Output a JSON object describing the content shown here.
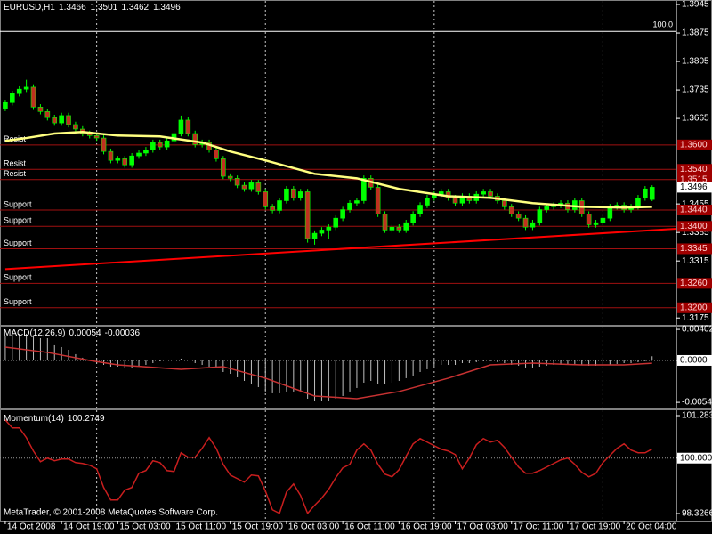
{
  "chart_data": [
    {
      "type": "candlestick",
      "title": "EURUSD,H1",
      "open": [
        1.369,
        1.3704,
        1.3726,
        1.3737,
        1.3742,
        1.3693,
        1.3682,
        1.3667,
        1.3654,
        1.3672,
        1.365,
        1.3639,
        1.3628,
        1.3623,
        1.3617,
        1.3584,
        1.3562,
        1.3566,
        1.3551,
        1.3573,
        1.358,
        1.3588,
        1.3606,
        1.3595,
        1.361,
        1.3628,
        1.3661,
        1.3628,
        1.3601,
        1.3606,
        1.3588,
        1.3566,
        1.3523,
        1.3518,
        1.3501,
        1.3492,
        1.3507,
        1.3485,
        1.3448,
        1.3439,
        1.3463,
        1.3492,
        1.347,
        1.3485,
        1.337,
        1.3383,
        1.3391,
        1.3398,
        1.342,
        1.3441,
        1.3457,
        1.3463,
        1.3518,
        1.3496,
        1.343,
        1.3391,
        1.3398,
        1.3391,
        1.3409,
        1.343,
        1.3452,
        1.347,
        1.3479,
        1.3485,
        1.347,
        1.3457,
        1.3474,
        1.3463,
        1.3479,
        1.3485,
        1.3474,
        1.3463,
        1.3448,
        1.343,
        1.342,
        1.3398,
        1.3409,
        1.3441,
        1.3448,
        1.3452,
        1.3457,
        1.3441,
        1.3463,
        1.343,
        1.3404,
        1.3409,
        1.342,
        1.3448,
        1.3452,
        1.3441,
        1.3448,
        1.347,
        1.3466
      ],
      "high": [
        1.3711,
        1.3733,
        1.3744,
        1.376,
        1.3749,
        1.37,
        1.3689,
        1.3674,
        1.3679,
        1.3679,
        1.3657,
        1.3646,
        1.3635,
        1.363,
        1.3624,
        1.3591,
        1.3573,
        1.3573,
        1.358,
        1.3587,
        1.3595,
        1.3613,
        1.3613,
        1.3617,
        1.3635,
        1.3672,
        1.3668,
        1.3635,
        1.3613,
        1.3613,
        1.3595,
        1.3573,
        1.353,
        1.3525,
        1.3508,
        1.3514,
        1.3514,
        1.3492,
        1.3455,
        1.347,
        1.3499,
        1.3499,
        1.3492,
        1.3492,
        1.339,
        1.3398,
        1.3405,
        1.3427,
        1.3448,
        1.3464,
        1.347,
        1.3525,
        1.3525,
        1.3503,
        1.3437,
        1.3405,
        1.3405,
        1.3416,
        1.3437,
        1.3459,
        1.3477,
        1.3486,
        1.3492,
        1.3492,
        1.3477,
        1.3481,
        1.3481,
        1.3486,
        1.3492,
        1.3492,
        1.3481,
        1.347,
        1.3455,
        1.3437,
        1.3427,
        1.3416,
        1.3448,
        1.3455,
        1.3459,
        1.3464,
        1.3464,
        1.347,
        1.347,
        1.3437,
        1.3416,
        1.3427,
        1.3455,
        1.3459,
        1.3459,
        1.3455,
        1.3477,
        1.3499,
        1.3501
      ],
      "low": [
        1.3683,
        1.3697,
        1.3719,
        1.373,
        1.3686,
        1.3675,
        1.366,
        1.3647,
        1.3647,
        1.3643,
        1.3632,
        1.3621,
        1.3616,
        1.361,
        1.3577,
        1.3555,
        1.3555,
        1.3544,
        1.3544,
        1.3566,
        1.3573,
        1.3581,
        1.3588,
        1.3588,
        1.3603,
        1.3621,
        1.3621,
        1.3594,
        1.3594,
        1.3581,
        1.3559,
        1.3516,
        1.3511,
        1.3494,
        1.3485,
        1.3485,
        1.3478,
        1.3441,
        1.3432,
        1.3432,
        1.3456,
        1.3463,
        1.3463,
        1.336,
        1.3355,
        1.3376,
        1.337,
        1.3391,
        1.3413,
        1.3434,
        1.345,
        1.3456,
        1.3489,
        1.3423,
        1.3384,
        1.3384,
        1.3384,
        1.3384,
        1.3402,
        1.3423,
        1.3445,
        1.3463,
        1.3472,
        1.3463,
        1.345,
        1.345,
        1.3456,
        1.3456,
        1.3472,
        1.3467,
        1.3456,
        1.3441,
        1.3423,
        1.3413,
        1.3391,
        1.3391,
        1.3402,
        1.3434,
        1.3441,
        1.3445,
        1.3434,
        1.3434,
        1.3423,
        1.3397,
        1.3397,
        1.3402,
        1.3413,
        1.3441,
        1.3434,
        1.3434,
        1.3441,
        1.3463,
        1.3462
      ],
      "close": [
        1.3704,
        1.3726,
        1.3737,
        1.3742,
        1.3693,
        1.3682,
        1.3667,
        1.3654,
        1.3672,
        1.365,
        1.3639,
        1.3628,
        1.3623,
        1.3617,
        1.3584,
        1.3562,
        1.3566,
        1.3551,
        1.3573,
        1.358,
        1.3588,
        1.3606,
        1.3595,
        1.361,
        1.3628,
        1.3661,
        1.3628,
        1.3601,
        1.3606,
        1.3588,
        1.3566,
        1.3523,
        1.3518,
        1.3501,
        1.3492,
        1.3507,
        1.3485,
        1.3448,
        1.3439,
        1.3463,
        1.3492,
        1.347,
        1.3485,
        1.337,
        1.3383,
        1.3391,
        1.3398,
        1.342,
        1.3441,
        1.3457,
        1.3463,
        1.3518,
        1.3496,
        1.343,
        1.3391,
        1.3398,
        1.3391,
        1.3409,
        1.343,
        1.3452,
        1.347,
        1.3479,
        1.3485,
        1.347,
        1.3457,
        1.3474,
        1.3463,
        1.3479,
        1.3485,
        1.3474,
        1.3463,
        1.3448,
        1.343,
        1.342,
        1.3398,
        1.3409,
        1.3441,
        1.3448,
        1.3452,
        1.3457,
        1.3441,
        1.3463,
        1.343,
        1.3404,
        1.3409,
        1.342,
        1.3448,
        1.3452,
        1.3441,
        1.3448,
        1.347,
        1.3492,
        1.3496
      ],
      "bull_color": "#00ff00",
      "bear_color": "#c03020",
      "wick_color": "#00ff00",
      "ma": {
        "x": [
          0,
          3,
          7,
          11,
          16,
          22,
          28,
          32,
          37,
          44,
          50,
          56,
          63,
          69,
          75,
          82,
          88,
          92
        ],
        "values": [
          1.361,
          1.3617,
          1.3628,
          1.3632,
          1.3623,
          1.3621,
          1.3606,
          1.3584,
          1.3562,
          1.3529,
          1.3518,
          1.3492,
          1.3474,
          1.347,
          1.3457,
          1.3448,
          1.3446,
          1.3448
        ],
        "color": "#ffff80"
      },
      "trendline": {
        "x": [
          0,
          95.45
        ],
        "values": [
          1.3295,
          1.3394
        ],
        "color": "#ff0000"
      },
      "levels": [
        {
          "value": 1.36,
          "label": "1.3600",
          "name": "Resist"
        },
        {
          "value": 1.354,
          "label": "1.3540",
          "name": "Resist"
        },
        {
          "value": 1.3515,
          "name": "Resist"
        },
        {
          "value": 1.344,
          "label": "1.3440",
          "name": "Support"
        },
        {
          "value": 1.34,
          "label": "1.3400",
          "name": "Support"
        },
        {
          "value": 1.3345,
          "name": "Support"
        },
        {
          "value": 1.326,
          "label": "1.3260",
          "name": "Support"
        },
        {
          "value": 1.32,
          "label": "1.3200",
          "name": "Support"
        }
      ],
      "level_color": "#a01010",
      "fibo": {
        "value": 1.3879,
        "label": "100.0"
      },
      "separators": [
        13,
        37,
        61,
        85
      ],
      "xlim": [
        -0.75,
        95.45
      ],
      "ylim": [
        1.3158,
        1.3956
      ],
      "yticks": [
        1.3945,
        1.3875,
        1.3805,
        1.3735,
        1.3665,
        1.3455,
        1.3385,
        1.3315,
        1.3175
      ]
    },
    {
      "type": "bar",
      "title": "MACD(12,26,9)",
      "values": [
        0.00311,
        0.00346,
        0.00346,
        0.00346,
        0.00311,
        0.00288,
        0.00288,
        0.00196,
        0.00173,
        0.00138,
        0.00081,
        0.00035,
        0,
        -0.00035,
        -0.00058,
        -0.00081,
        -0.00081,
        -0.00104,
        -0.00104,
        -0.00081,
        -0.00058,
        -0.00035,
        -0.00012,
        0,
        0.00012,
        0.00023,
        0,
        -0.00035,
        -0.00058,
        -0.00081,
        -0.00104,
        -0.0015,
        -0.00173,
        -0.00219,
        -0.00265,
        -0.00311,
        -0.00346,
        -0.00403,
        -0.00426,
        -0.00426,
        -0.00403,
        -0.00403,
        -0.00403,
        -0.00496,
        -0.00519,
        -0.00519,
        -0.00519,
        -0.00496,
        -0.00461,
        -0.00403,
        -0.00357,
        -0.00288,
        -0.00265,
        -0.00311,
        -0.00311,
        -0.00288,
        -0.00265,
        -0.0023,
        -0.00196,
        -0.0015,
        -0.00115,
        -0.00081,
        -0.00058,
        -0.00058,
        -0.00058,
        -0.00035,
        -0.00035,
        -0.00023,
        -0.00012,
        -0.00012,
        -0.00023,
        -0.00035,
        -0.00058,
        -0.00069,
        -0.00092,
        -0.00092,
        -0.00081,
        -0.00069,
        -0.00058,
        -0.00058,
        -0.00058,
        -0.00046,
        -0.00058,
        -0.00069,
        -0.00069,
        -0.00069,
        -0.00058,
        -0.00046,
        -0.00035,
        -0.00035,
        -0.00023,
        -0.00012,
        0.00054
      ],
      "color": "#c0c0c0",
      "signal": {
        "x": [
          0,
          6,
          12,
          16,
          25,
          31,
          37,
          44,
          50,
          56,
          63,
          69,
          75,
          82,
          88,
          92
        ],
        "values": [
          0.00173,
          0.00104,
          0,
          -0.00058,
          -0.00115,
          -0.00081,
          -0.0023,
          -0.00461,
          -0.00496,
          -0.00403,
          -0.0023,
          -0.00058,
          -0.00035,
          -0.00058,
          -0.00058,
          -0.00036
        ],
        "color": "#c83232"
      },
      "ylim": [
        -0.00611,
        0.00449
      ],
      "yticks": [
        0.00402,
        {
          "value": 0,
          "label": "0.0000",
          "level": true
        },
        -0.00543
      ]
    },
    {
      "type": "line",
      "title": "Momentum(14)",
      "values": [
        101.1559,
        100.914,
        100.914,
        100.6183,
        100.2151,
        99.8925,
        100,
        99.9194,
        99.9731,
        99.9731,
        99.8656,
        99.8387,
        99.7849,
        99.6774,
        99.1129,
        98.7366,
        98.7366,
        99.0323,
        99.1129,
        99.543,
        99.6237,
        99.9194,
        99.8656,
        99.6237,
        99.5968,
        100.1613,
        100.0269,
        100.0269,
        100.2957,
        100.6183,
        100.2957,
        99.8118,
        99.4892,
        99.3817,
        99.2742,
        99.4892,
        99.4624,
        99.0054,
        98.4409,
        98.3334,
        98.9785,
        99.2204,
        98.871,
        98.3334,
        98.5753,
        98.7903,
        99.0592,
        99.4086,
        99.7043,
        99.8118,
        100.2419,
        100.4301,
        100.2419,
        99.8118,
        99.5161,
        99.4355,
        99.6506,
        100.0538,
        100.4301,
        100.5914,
        100.4839,
        100.3763,
        100.2688,
        100.2151,
        100.1075,
        99.6774,
        100,
        100.4032,
        100.5914,
        100.4839,
        100.5376,
        100.3226,
        100.0269,
        99.7312,
        99.543,
        99.543,
        99.6237,
        99.7312,
        99.8387,
        99.9462,
        100,
        99.8118,
        99.5699,
        99.4355,
        99.543,
        99.8656,
        100.0806,
        100.2957,
        100.4301,
        100.2419,
        100.1613,
        100.1613,
        100.2749
      ],
      "color": "#c81e1e",
      "ylim": [
        98.1115,
        101.4716
      ],
      "yticks": [
        101.2834,
        {
          "value": 100,
          "label": "100.0000",
          "level": true
        },
        98.3266
      ],
      "xticks": [
        {
          "value": 0,
          "label": "14 Oct 2008"
        },
        {
          "value": 8,
          "label": "14 Oct 19:00"
        },
        {
          "value": 16,
          "label": "15 Oct 03:00"
        },
        {
          "value": 24,
          "label": "15 Oct 11:00"
        },
        {
          "value": 32,
          "label": "15 Oct 19:00"
        },
        {
          "value": 40,
          "label": "16 Oct 03:00"
        },
        {
          "value": 48,
          "label": "16 Oct 11:00"
        },
        {
          "value": 56,
          "label": "16 Oct 19:00"
        },
        {
          "value": 64,
          "label": "17 Oct 03:00"
        },
        {
          "value": 72,
          "label": "17 Oct 11:00"
        },
        {
          "value": 80,
          "label": "17 Oct 19:00"
        },
        {
          "value": 88,
          "label": "20 Oct 04:00"
        }
      ],
      "footer": "MetaTrader, © 2001-2008 MetaQuotes Software Corp."
    }
  ]
}
